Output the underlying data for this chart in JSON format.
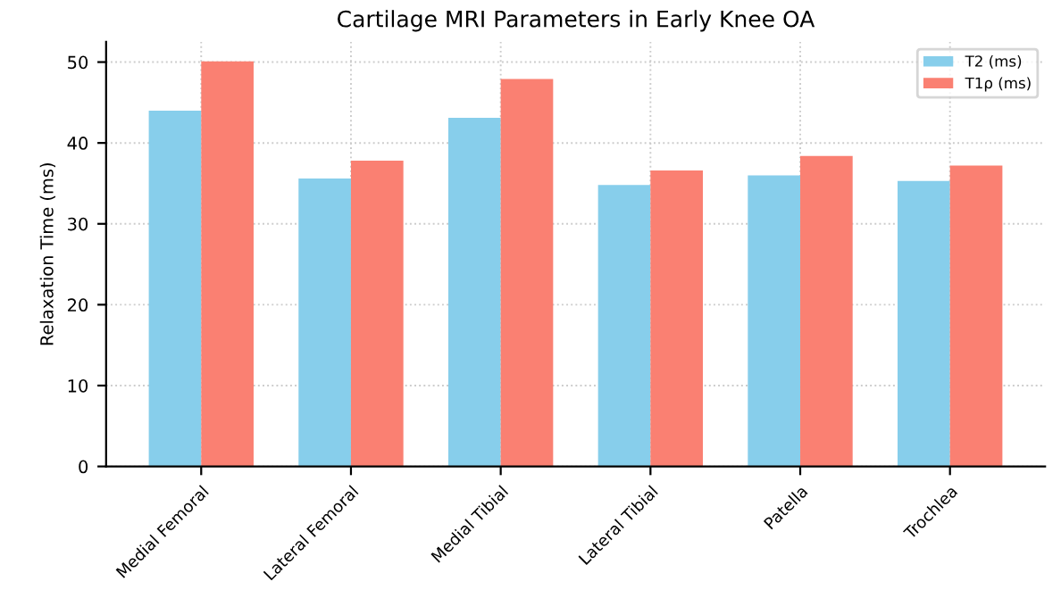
{
  "chart_data": {
    "type": "bar",
    "title": "Cartilage MRI Parameters in Early Knee OA",
    "ylabel": "Relaxation Time (ms)",
    "categories": [
      "Medial Femoral",
      "Lateral Femoral",
      "Medial Tibial",
      "Lateral Tibial",
      "Patella",
      "Trochlea"
    ],
    "series": [
      {
        "name": "T2 (ms)",
        "color": "#87ceeb",
        "values": [
          44.0,
          35.6,
          43.1,
          34.8,
          36.0,
          35.3
        ]
      },
      {
        "name": "T1ρ (ms)",
        "color": "#fa8072",
        "values": [
          50.1,
          37.8,
          47.9,
          36.6,
          38.4,
          37.2
        ]
      }
    ],
    "ylim": [
      0,
      52.5
    ],
    "yticks": [
      0,
      10,
      20,
      30,
      40,
      50
    ],
    "grid": true,
    "legend": "top right"
  }
}
